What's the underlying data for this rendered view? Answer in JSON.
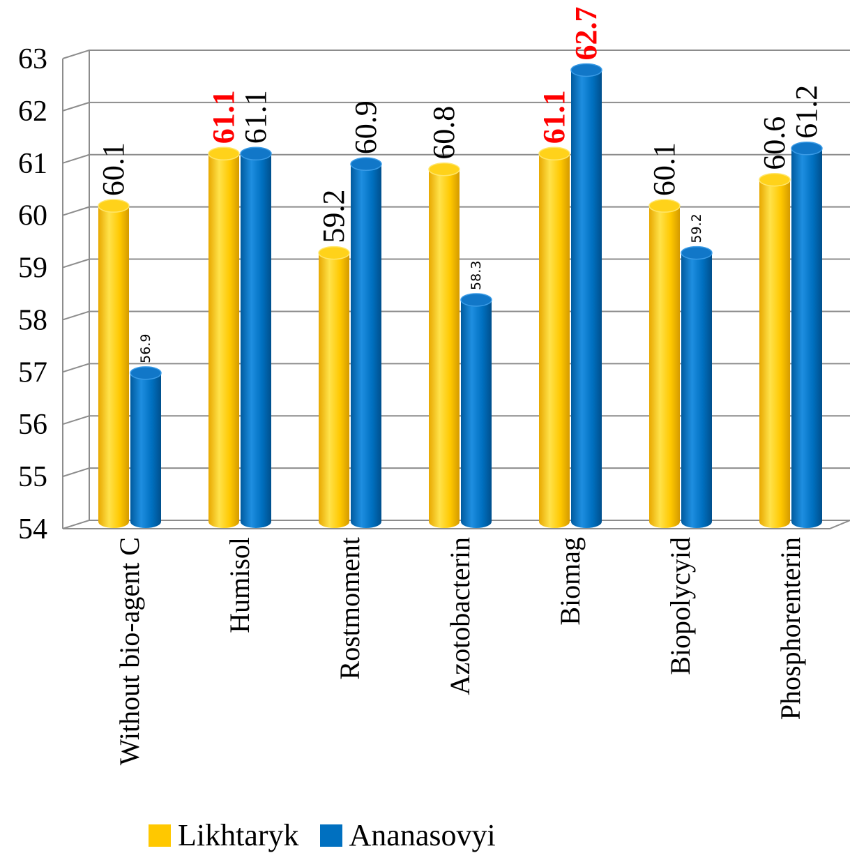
{
  "chart_data": {
    "type": "bar",
    "categories": [
      "Without bio-agent C",
      "Humisol",
      "Rostmoment",
      "Azotobacterin",
      "Biomag",
      "Biopolycyid",
      "Phosphorenterin"
    ],
    "series": [
      {
        "name": "Likhtaryk",
        "color": "#ffc800",
        "values": [
          60.1,
          61.1,
          59.2,
          60.8,
          61.1,
          60.1,
          60.6
        ],
        "labels": [
          "60.1",
          "61.1",
          "59.2",
          "60.8",
          "61.1",
          "60.1",
          "60.6"
        ],
        "label_styles": [
          "big",
          "highlight",
          "big",
          "big",
          "highlight",
          "big",
          "big"
        ]
      },
      {
        "name": "Ananasovyi",
        "color": "#0070c0",
        "values": [
          56.9,
          61.1,
          60.9,
          58.3,
          62.7,
          59.2,
          61.2
        ],
        "labels": [
          "56.9",
          "61.1",
          "60.9",
          "58.3",
          "62.7",
          "59.2",
          "61.2"
        ],
        "label_styles": [
          "small",
          "big",
          "big",
          "small",
          "highlight",
          "small",
          "big"
        ]
      }
    ],
    "yticks": [
      "54",
      "55",
      "56",
      "57",
      "58",
      "59",
      "60",
      "61",
      "62",
      "63"
    ],
    "ylim": [
      54,
      63
    ],
    "grid": true,
    "legend_position": "bottom",
    "style": "3d-cylinder"
  }
}
